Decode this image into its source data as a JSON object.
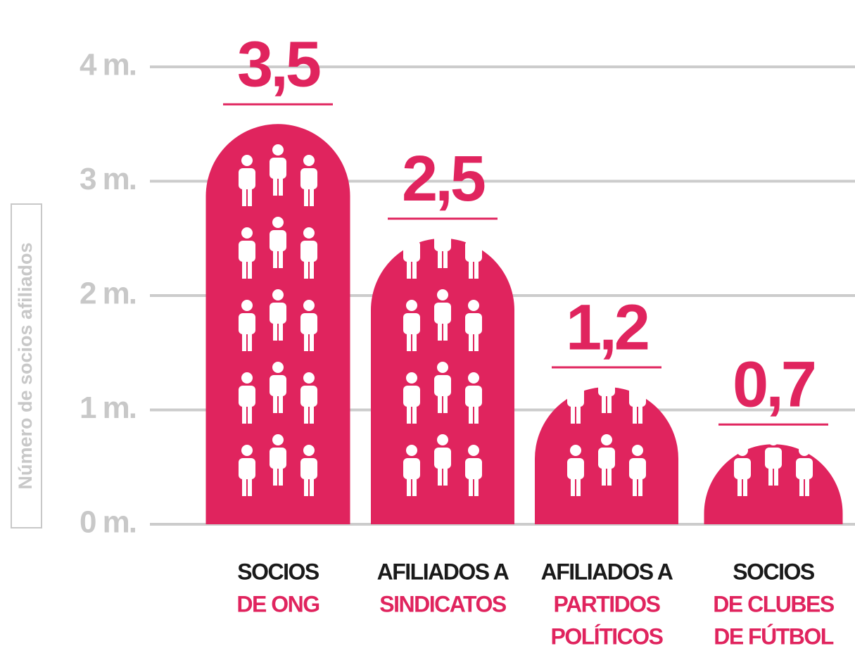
{
  "chart_data": {
    "type": "bar",
    "y_label": "Número de socios afiliados",
    "categories": [
      [
        "SOCIOS",
        "DE ONG"
      ],
      [
        "AFILIADOS A",
        "SINDICATOS"
      ],
      [
        "AFILIADOS A",
        "PARTIDOS",
        "POLÍTICOS"
      ],
      [
        "SOCIOS",
        "DE CLUBES",
        "DE FÚTBOL"
      ]
    ],
    "values": [
      3.5,
      2.5,
      1.2,
      0.7
    ],
    "value_labels": [
      "3,5",
      "2,5",
      "1,2",
      "0,7"
    ],
    "color": "#e0245e",
    "ylim": [
      0,
      4
    ],
    "yticks": [
      {
        "value": 0,
        "label": "0 m."
      },
      {
        "value": 1,
        "label": "1 m."
      },
      {
        "value": 2,
        "label": "2 m."
      },
      {
        "value": 3,
        "label": "3 m."
      },
      {
        "value": 4,
        "label": "4 m."
      }
    ],
    "grid": true
  }
}
